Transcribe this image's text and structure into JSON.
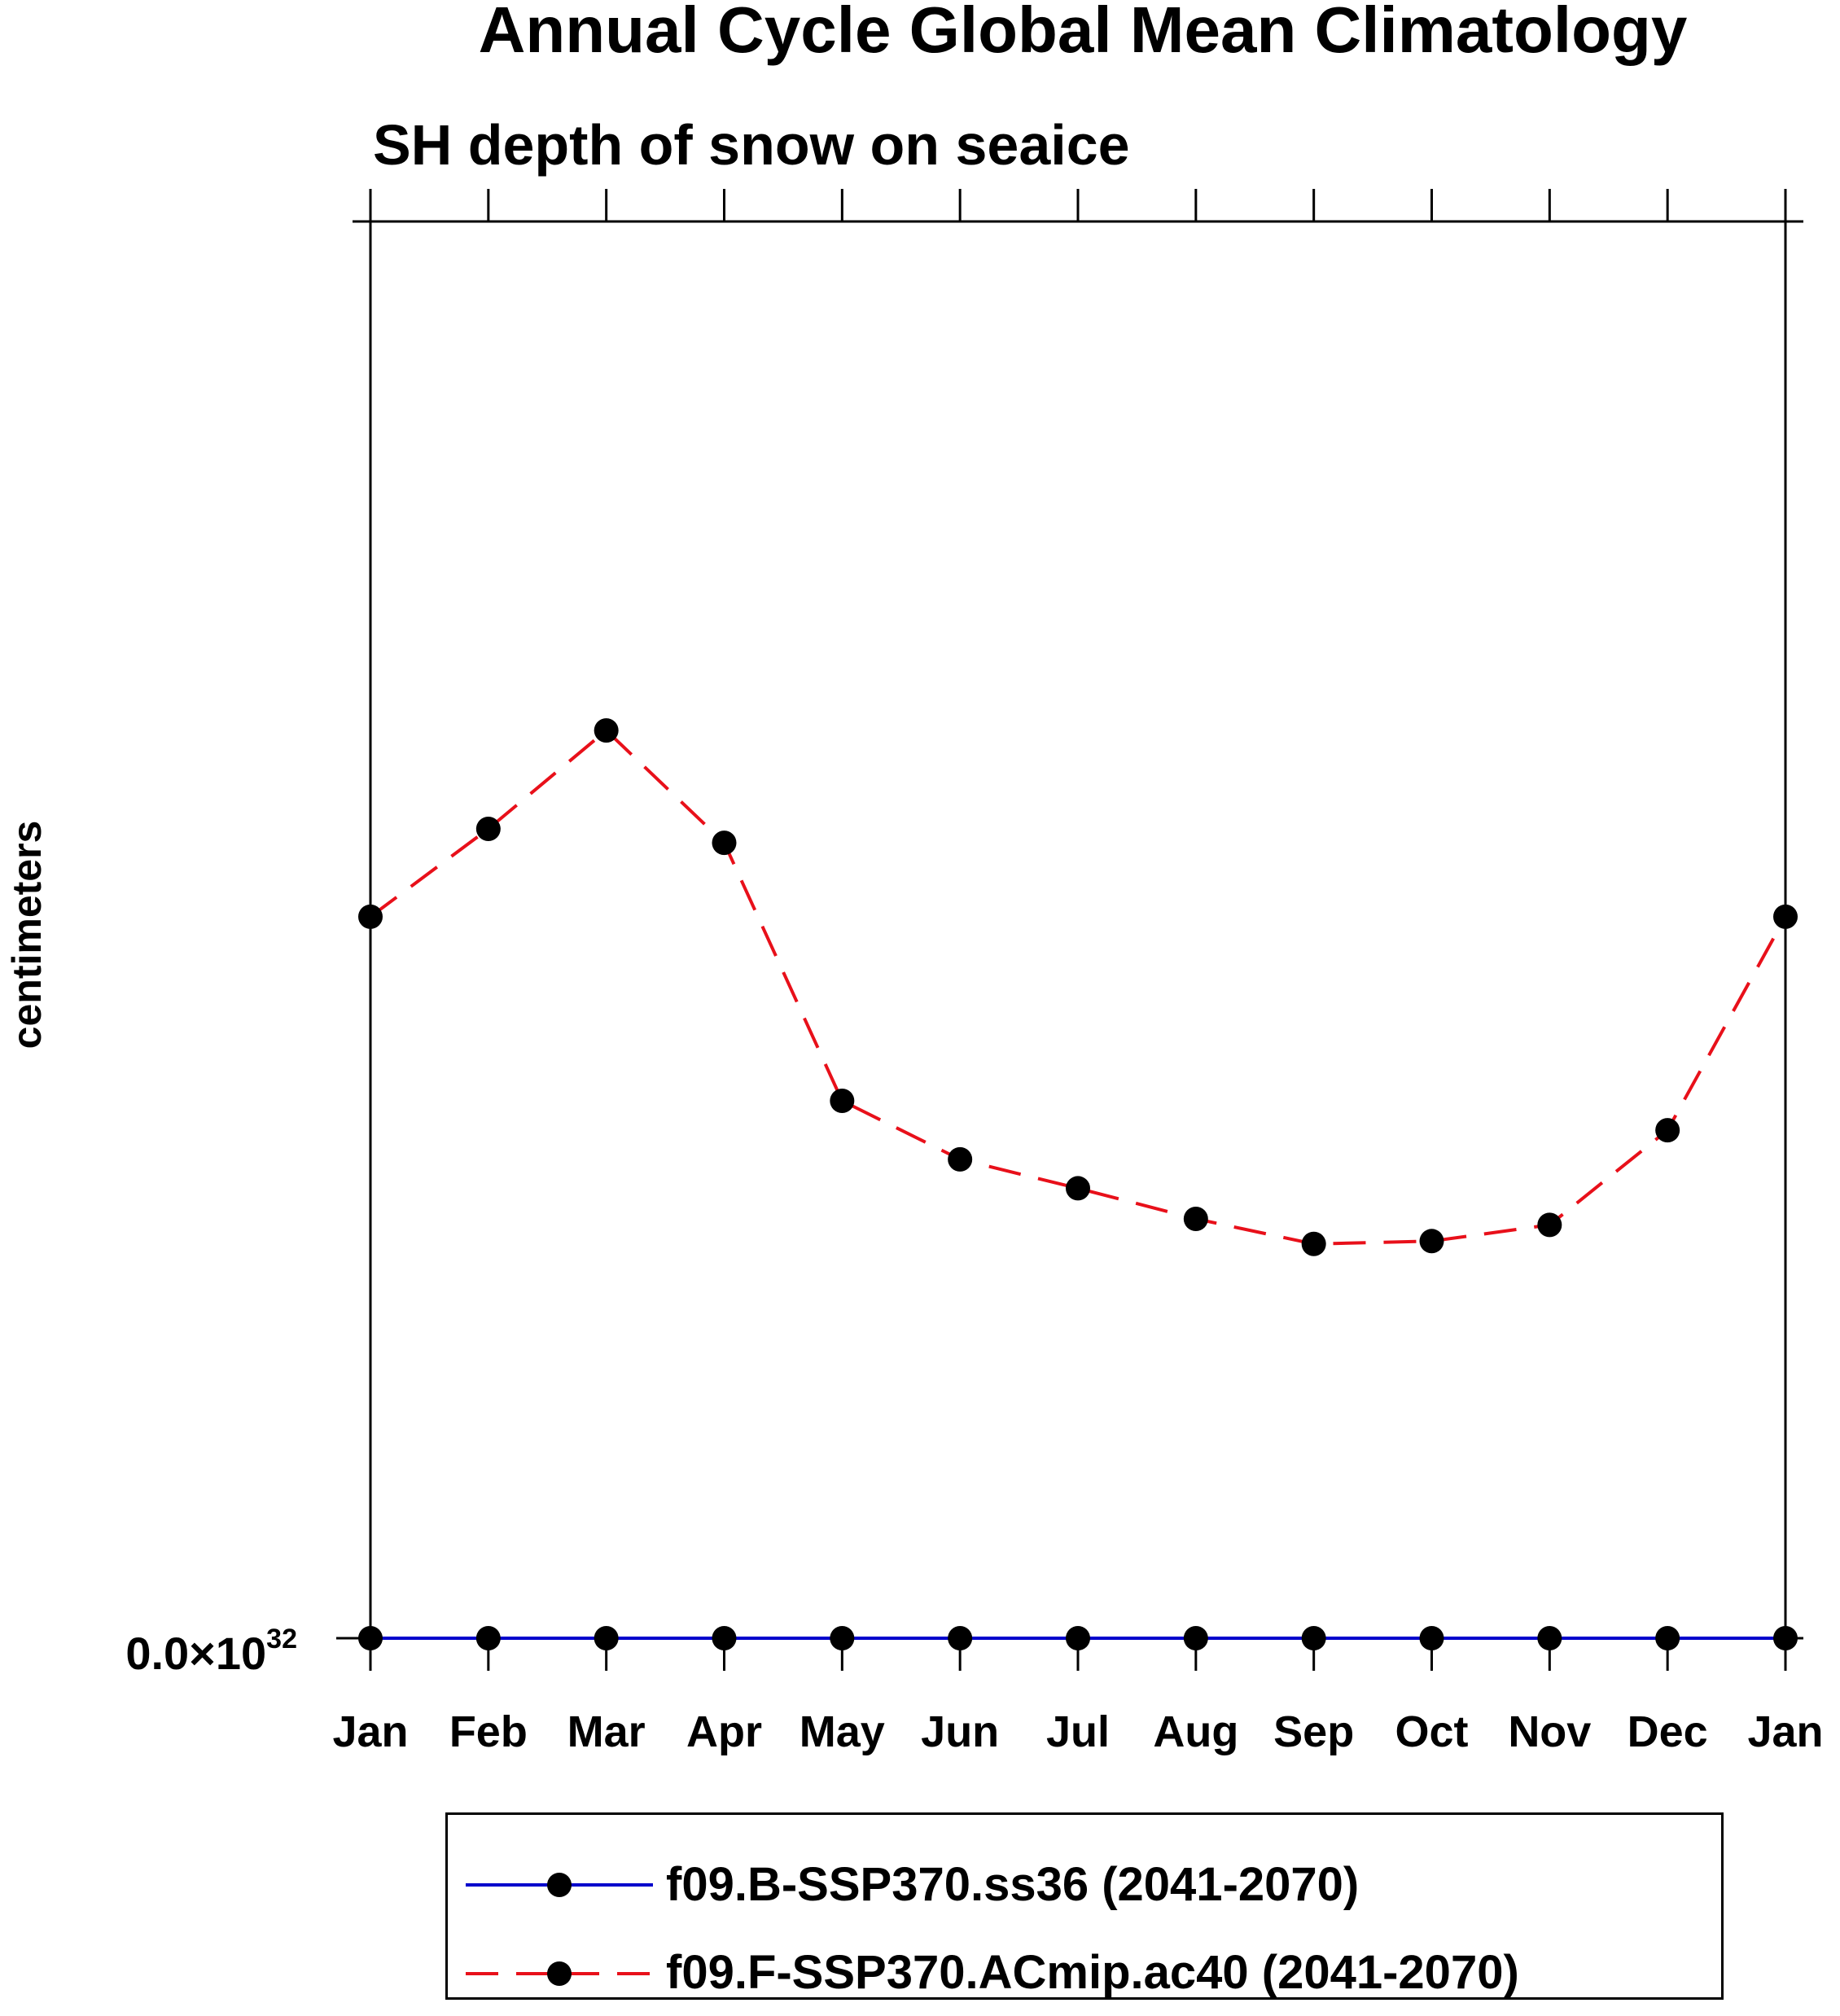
{
  "chart_data": {
    "type": "line",
    "title": "Annual Cycle Global Mean Climatology",
    "subtitle": "SH depth of snow on seaice",
    "xlabel": "",
    "ylabel": "centimeters",
    "categories": [
      "Jan",
      "Feb",
      "Mar",
      "Apr",
      "May",
      "Jun",
      "Jul",
      "Aug",
      "Sep",
      "Oct",
      "Nov",
      "Dec",
      "Jan"
    ],
    "ytick_label": {
      "mantissa": "0.0",
      "times": "×10",
      "exponent": "32"
    },
    "ylim": [
      0,
      0.7
    ],
    "grid": false,
    "legend_position": "bottom",
    "series": [
      {
        "name": "f09.B-SSP370.ss36 (2041-2070)",
        "color": "#0000cc",
        "line_style": "solid",
        "marker": "filled-circle",
        "values": [
          0,
          0,
          0,
          0,
          0,
          0,
          0,
          0,
          0,
          0,
          0,
          0,
          0
        ]
      },
      {
        "name": "f09.F-SSP370.ACmip.ac40 (2041-2070)",
        "color": "#e8101a",
        "line_style": "dashed",
        "marker": "filled-circle",
        "values": [
          0.3565,
          0.3999,
          0.4485,
          0.393,
          0.2655,
          0.2366,
          0.2223,
          0.2072,
          0.1948,
          0.1962,
          0.2042,
          0.251,
          0.3565
        ]
      }
    ]
  }
}
